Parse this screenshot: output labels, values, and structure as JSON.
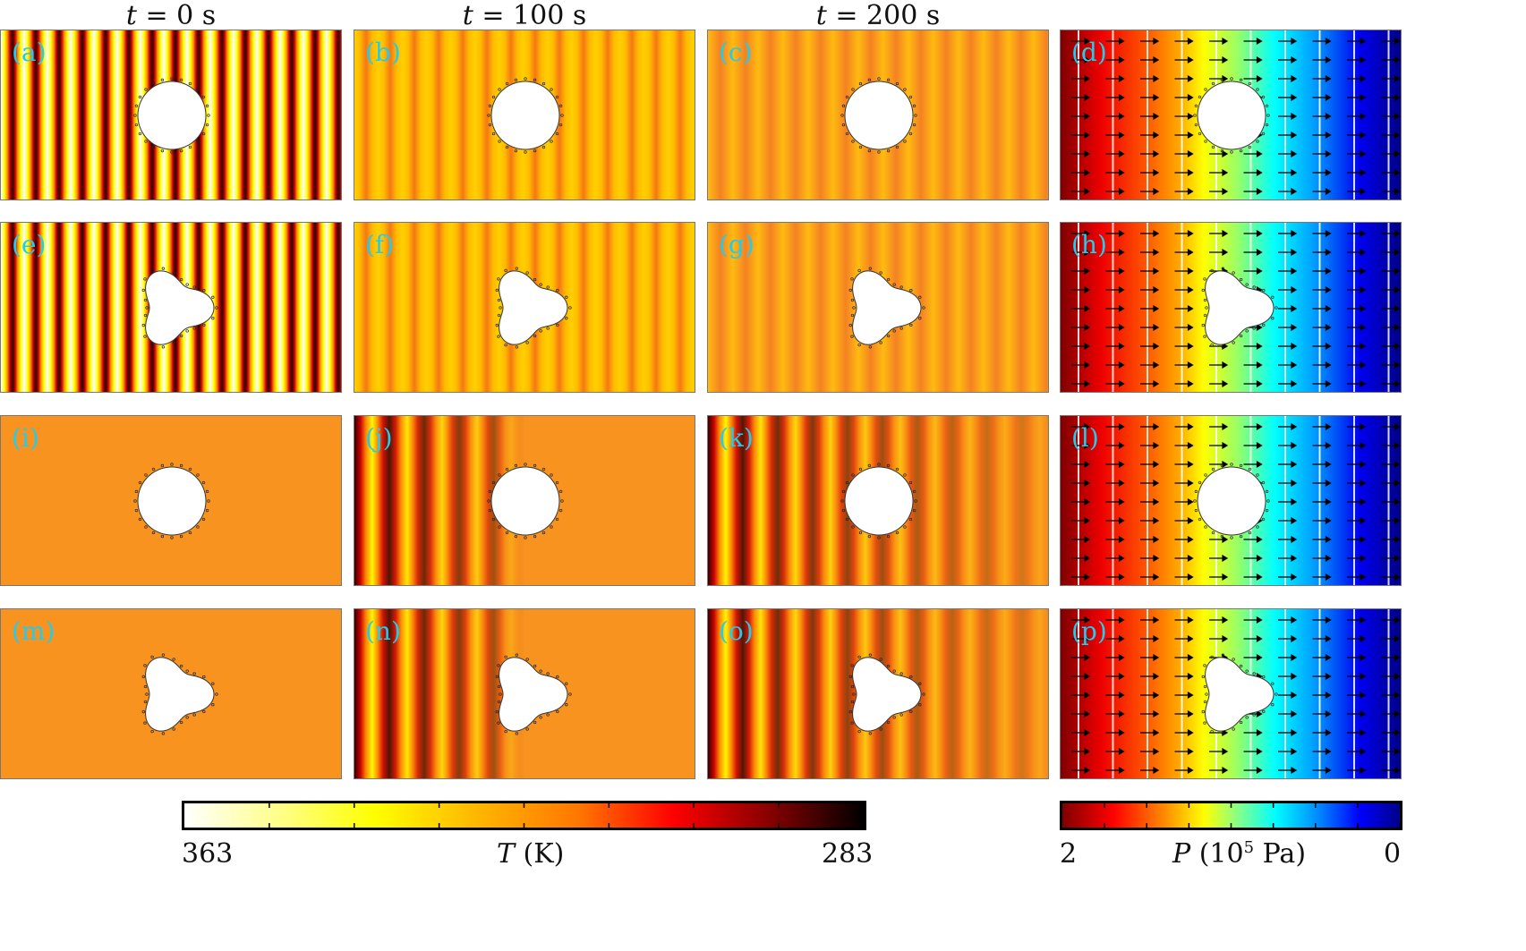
{
  "headers": [
    "t = 0 s",
    "t = 100 s",
    "t = 200 s"
  ],
  "header_parts": [
    {
      "var": "t",
      "rest": " = 0 s"
    },
    {
      "var": "t",
      "rest": " = 100 s"
    },
    {
      "var": "t",
      "rest": " = 200 s"
    }
  ],
  "panels": [
    {
      "label": "(a)",
      "shape": "circle",
      "field": "T",
      "state": "initial stripes"
    },
    {
      "label": "(b)",
      "shape": "circle",
      "field": "T",
      "state": "t=100"
    },
    {
      "label": "(c)",
      "shape": "circle",
      "field": "T",
      "state": "t=200"
    },
    {
      "label": "(d)",
      "shape": "circle",
      "field": "P",
      "state": "pressure"
    },
    {
      "label": "(e)",
      "shape": "trefoil",
      "field": "T",
      "state": "initial stripes"
    },
    {
      "label": "(f)",
      "shape": "trefoil",
      "field": "T",
      "state": "t=100"
    },
    {
      "label": "(g)",
      "shape": "trefoil",
      "field": "T",
      "state": "t=200"
    },
    {
      "label": "(h)",
      "shape": "trefoil",
      "field": "P",
      "state": "pressure"
    },
    {
      "label": "(i)",
      "shape": "circle",
      "field": "T",
      "state": "uniform"
    },
    {
      "label": "(j)",
      "shape": "circle",
      "field": "T",
      "state": "front t=100"
    },
    {
      "label": "(k)",
      "shape": "circle",
      "field": "T",
      "state": "front t=200"
    },
    {
      "label": "(l)",
      "shape": "circle",
      "field": "P",
      "state": "pressure"
    },
    {
      "label": "(m)",
      "shape": "trefoil",
      "field": "T",
      "state": "uniform"
    },
    {
      "label": "(n)",
      "shape": "trefoil",
      "field": "T",
      "state": "front t=100"
    },
    {
      "label": "(o)",
      "shape": "trefoil",
      "field": "T",
      "state": "front t=200"
    },
    {
      "label": "(p)",
      "shape": "trefoil",
      "field": "P",
      "state": "pressure"
    }
  ],
  "colorbar_T": {
    "min_label": "363",
    "max_label": "283",
    "title_var": "T",
    "title_unit": " (K)",
    "colormap": "hot-reversed"
  },
  "colorbar_P": {
    "min_label": "2",
    "max_label": "0",
    "title_var": "P",
    "title_unit_pre": " (10",
    "title_exp": "5",
    "title_unit_post": " Pa)",
    "colormap": "jet-reversed"
  },
  "colors": {
    "label": "#22ccee",
    "uniform_T": "#f7931e"
  }
}
